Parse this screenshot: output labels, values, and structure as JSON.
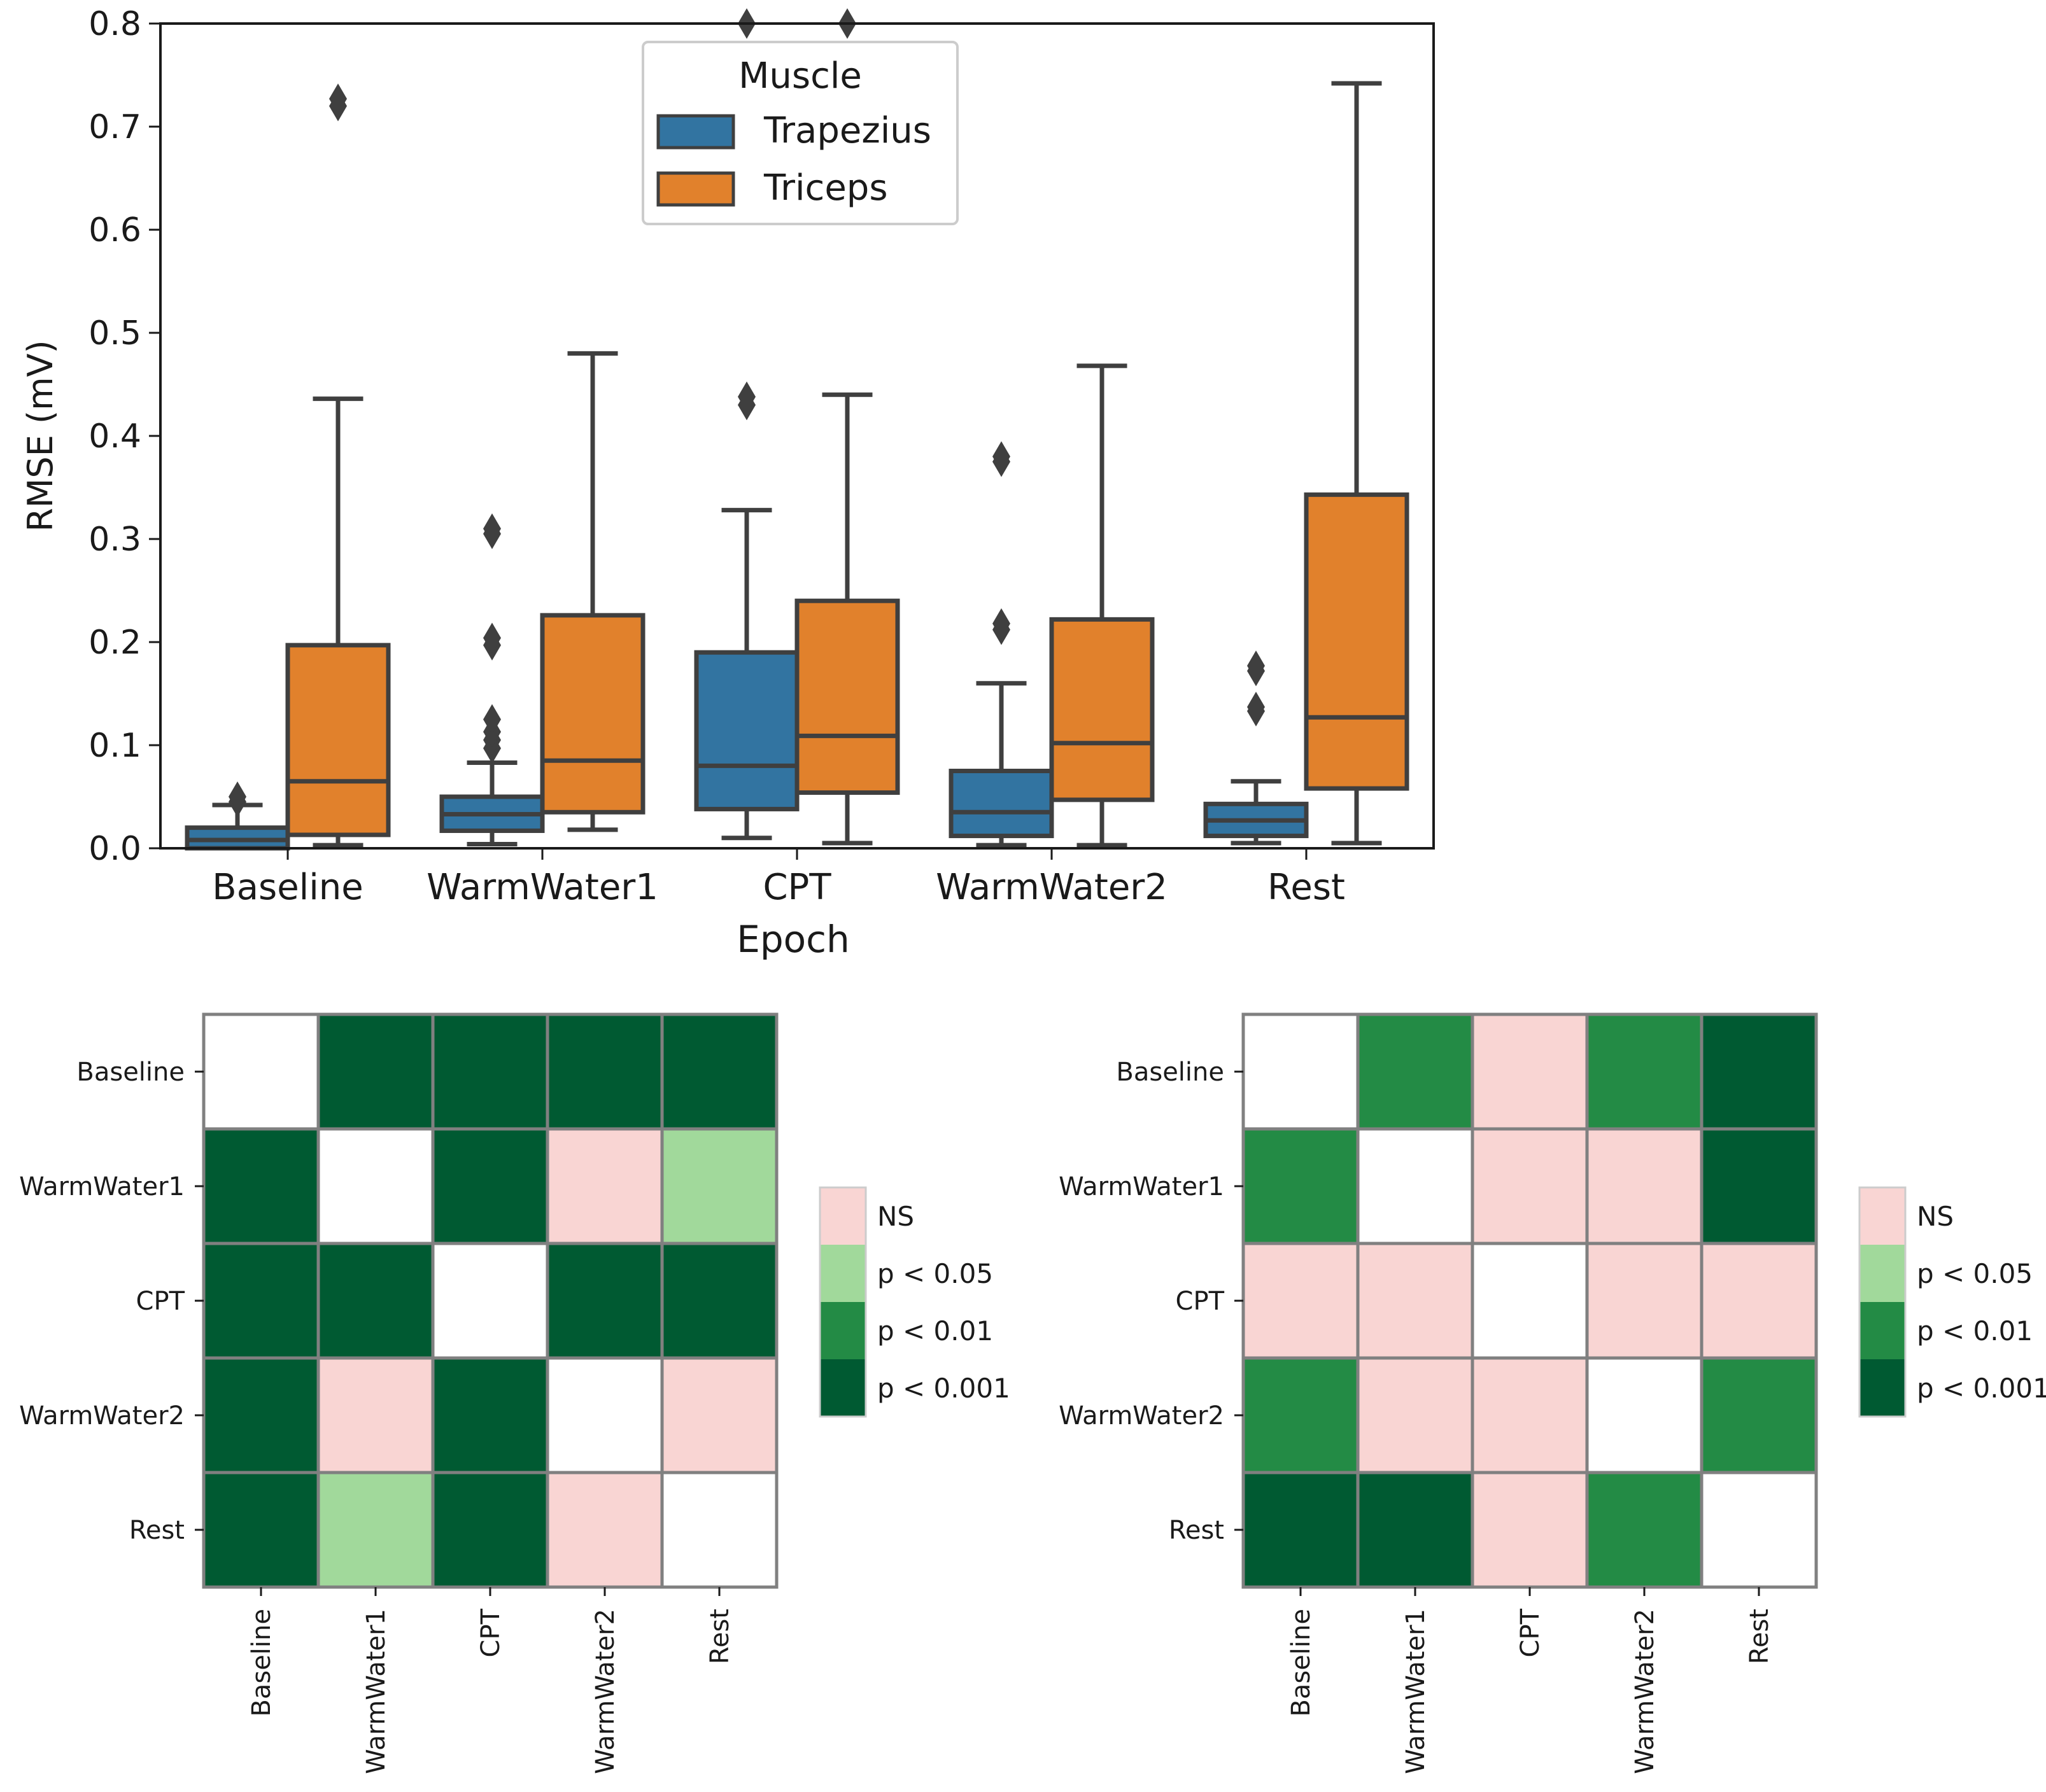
{
  "chart_data": [
    {
      "type": "box",
      "title": "",
      "xlabel": "Epoch",
      "ylabel": "RMSE (mV)",
      "ylim": [
        0.0,
        0.8
      ],
      "yticks": [
        "0.0",
        "0.1",
        "0.2",
        "0.3",
        "0.4",
        "0.5",
        "0.6",
        "0.7",
        "0.8"
      ],
      "categories": [
        "Baseline",
        "WarmWater1",
        "CPT",
        "WarmWater2",
        "Rest"
      ],
      "legend": {
        "title": "Muscle",
        "position": "top-center"
      },
      "series": [
        {
          "name": "Trapezius",
          "color": "#3274a1",
          "boxes": [
            {
              "whisker_low": 0.0,
              "q1": 0.0,
              "median": 0.008,
              "q3": 0.02,
              "whisker_high": 0.042,
              "outliers": [
                0.045,
                0.05
              ]
            },
            {
              "whisker_low": 0.004,
              "q1": 0.017,
              "median": 0.033,
              "q3": 0.05,
              "whisker_high": 0.083,
              "outliers": [
                0.097,
                0.105,
                0.113,
                0.125,
                0.197,
                0.204,
                0.305,
                0.31
              ]
            },
            {
              "whisker_low": 0.01,
              "q1": 0.038,
              "median": 0.08,
              "q3": 0.19,
              "whisker_high": 0.328,
              "outliers": [
                0.43,
                0.438,
                0.8
              ]
            },
            {
              "whisker_low": 0.003,
              "q1": 0.012,
              "median": 0.035,
              "q3": 0.075,
              "whisker_high": 0.16,
              "outliers": [
                0.212,
                0.218,
                0.375,
                0.38
              ]
            },
            {
              "whisker_low": 0.005,
              "q1": 0.012,
              "median": 0.027,
              "q3": 0.043,
              "whisker_high": 0.065,
              "outliers": [
                0.133,
                0.137,
                0.172,
                0.177
              ]
            }
          ]
        },
        {
          "name": "Triceps",
          "color": "#e1812c",
          "boxes": [
            {
              "whisker_low": 0.003,
              "q1": 0.013,
              "median": 0.065,
              "q3": 0.197,
              "whisker_high": 0.436,
              "outliers": [
                0.72,
                0.727
              ]
            },
            {
              "whisker_low": 0.018,
              "q1": 0.035,
              "median": 0.085,
              "q3": 0.226,
              "whisker_high": 0.48,
              "outliers": []
            },
            {
              "whisker_low": 0.005,
              "q1": 0.054,
              "median": 0.109,
              "q3": 0.24,
              "whisker_high": 0.44,
              "outliers": [
                0.8
              ]
            },
            {
              "whisker_low": 0.003,
              "q1": 0.047,
              "median": 0.102,
              "q3": 0.222,
              "whisker_high": 0.468,
              "outliers": []
            },
            {
              "whisker_low": 0.005,
              "q1": 0.058,
              "median": 0.127,
              "q3": 0.343,
              "whisker_high": 0.742,
              "outliers": []
            }
          ]
        }
      ]
    },
    {
      "type": "heatmap",
      "title": "",
      "rows": [
        "Baseline",
        "WarmWater1",
        "CPT",
        "WarmWater2",
        "Rest"
      ],
      "columns": [
        "Baseline",
        "WarmWater1",
        "CPT",
        "WarmWater2",
        "Rest"
      ],
      "values": [
        [
          "",
          "p < 0.001",
          "p < 0.001",
          "p < 0.001",
          "p < 0.001"
        ],
        [
          "p < 0.001",
          "",
          "p < 0.001",
          "NS",
          "p < 0.05"
        ],
        [
          "p < 0.001",
          "p < 0.001",
          "",
          "p < 0.001",
          "p < 0.001"
        ],
        [
          "p < 0.001",
          "NS",
          "p < 0.001",
          "",
          "NS"
        ],
        [
          "p < 0.001",
          "p < 0.05",
          "p < 0.001",
          "NS",
          ""
        ]
      ],
      "legend": [
        "NS",
        "p < 0.05",
        "p < 0.01",
        "p < 0.001"
      ]
    },
    {
      "type": "heatmap",
      "title": "",
      "rows": [
        "Baseline",
        "WarmWater1",
        "CPT",
        "WarmWater2",
        "Rest"
      ],
      "columns": [
        "Baseline",
        "WarmWater1",
        "CPT",
        "WarmWater2",
        "Rest"
      ],
      "values": [
        [
          "",
          "p < 0.01",
          "NS",
          "p < 0.01",
          "p < 0.001"
        ],
        [
          "p < 0.01",
          "",
          "NS",
          "NS",
          "p < 0.001"
        ],
        [
          "NS",
          "NS",
          "",
          "NS",
          "NS"
        ],
        [
          "p < 0.01",
          "NS",
          "NS",
          "",
          "p < 0.01"
        ],
        [
          "p < 0.001",
          "p < 0.001",
          "NS",
          "p < 0.01",
          ""
        ]
      ],
      "legend": [
        "NS",
        "p < 0.05",
        "p < 0.01",
        "p < 0.001"
      ]
    }
  ],
  "colors": {
    "NS": "#f9d5d3",
    "p < 0.05": "#a1d99b",
    "p < 0.01": "#238b45",
    "p < 0.001": "#005a32",
    "empty": "#ffffff",
    "box_edge": "#3f3f3f",
    "grid_line": "#808080"
  }
}
